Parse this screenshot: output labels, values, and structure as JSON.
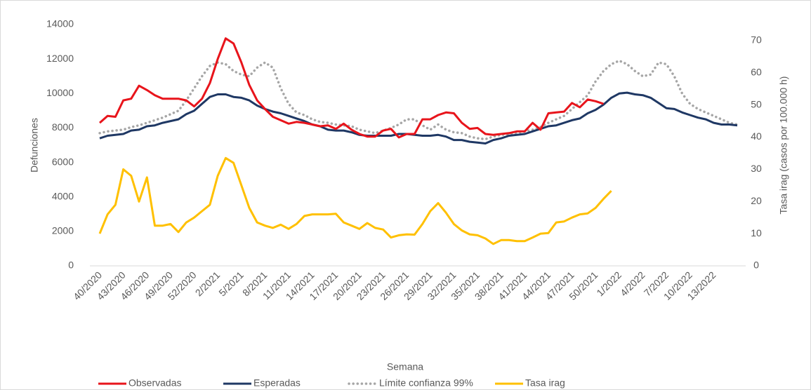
{
  "chart_data": {
    "type": "line",
    "x_label": "Semana",
    "y_label": "Defunciones",
    "y2_label": "Tasa irag (casos por 100.000 h)",
    "categories": [
      "40/2020",
      null,
      null,
      "43/2020",
      null,
      null,
      "46/2020",
      null,
      null,
      "49/2020",
      null,
      null,
      "52/2020",
      null,
      null,
      "2/2021",
      null,
      null,
      "5/2021",
      null,
      null,
      "8/2021",
      null,
      null,
      "11/2021",
      null,
      null,
      "14/2021",
      null,
      null,
      "17/2021",
      null,
      null,
      "20/2021",
      null,
      null,
      "23/2021",
      null,
      null,
      "26/2021",
      null,
      null,
      "29/2021",
      null,
      null,
      "32/2021",
      null,
      null,
      "35/2021",
      null,
      null,
      "38/2021",
      null,
      null,
      "41/2021",
      null,
      null,
      "44/2021",
      null,
      null,
      "47/2021",
      null,
      null,
      "50/2021",
      null,
      null,
      "1/2022",
      null,
      null,
      "4/2022",
      null,
      null,
      "7/2022",
      null,
      null,
      "10/2022",
      null,
      null,
      "13/2022",
      null,
      null,
      null
    ],
    "ylim": [
      0,
      14000
    ],
    "yticks": [
      0,
      2000,
      4000,
      6000,
      8000,
      10000,
      12000,
      14000
    ],
    "y2lim": [
      0,
      75
    ],
    "y2ticks": [
      0,
      10,
      20,
      30,
      40,
      50,
      60,
      70
    ],
    "legend": "bottom",
    "series": [
      {
        "name": "Observadas",
        "color": "#e8141b",
        "style": "solid",
        "values": [
          8300,
          8700,
          8650,
          9600,
          9700,
          10450,
          10200,
          9900,
          9700,
          9700,
          9700,
          9600,
          9250,
          9700,
          10600,
          12000,
          13200,
          12900,
          11800,
          10500,
          9600,
          9100,
          8650,
          8450,
          8250,
          8350,
          8300,
          8200,
          8100,
          8150,
          7950,
          8250,
          7900,
          7650,
          7500,
          7500,
          7850,
          7950,
          7450,
          7650,
          7650,
          8500,
          8500,
          8750,
          8900,
          8850,
          8300,
          7950,
          8000,
          7650,
          7600,
          7650,
          7700,
          7800,
          7800,
          8300,
          7900,
          8850,
          8900,
          8950,
          9450,
          9200,
          9650,
          9550,
          9400,
          null,
          null,
          null,
          null,
          null,
          null,
          null,
          null,
          null,
          null,
          null,
          null,
          null,
          null,
          null,
          null,
          null
        ]
      },
      {
        "name": "Esperadas",
        "color": "#1f3864",
        "style": "solid",
        "values": [
          7400,
          7550,
          7600,
          7650,
          7850,
          7900,
          8100,
          8150,
          8300,
          8400,
          8500,
          8800,
          9000,
          9400,
          9800,
          9950,
          9950,
          9800,
          9750,
          9600,
          9300,
          9100,
          8950,
          8850,
          8700,
          8550,
          8400,
          8200,
          8100,
          7900,
          7850,
          7850,
          7750,
          7600,
          7550,
          7550,
          7550,
          7550,
          7650,
          7650,
          7600,
          7550,
          7550,
          7600,
          7500,
          7300,
          7300,
          7200,
          7150,
          7100,
          7300,
          7400,
          7550,
          7600,
          7650,
          7800,
          7950,
          8100,
          8150,
          8300,
          8450,
          8550,
          8850,
          9050,
          9350,
          9750,
          10000,
          10050,
          9950,
          9900,
          9750,
          9450,
          9150,
          9100,
          8900,
          8750,
          8600,
          8500,
          8300,
          8200,
          8200,
          8150
        ]
      },
      {
        "name": "Límite confianza 99%",
        "color": "#a6a6a6",
        "style": "dotted",
        "values": [
          7700,
          7800,
          7850,
          7900,
          8050,
          8150,
          8300,
          8450,
          8600,
          8800,
          9000,
          9600,
          10300,
          11000,
          11600,
          11800,
          11700,
          11300,
          11100,
          11000,
          11500,
          11800,
          11500,
          10300,
          9400,
          8900,
          8750,
          8500,
          8350,
          8300,
          8200,
          8150,
          8100,
          7900,
          7800,
          7700,
          7850,
          8000,
          8200,
          8500,
          8500,
          8150,
          7900,
          8200,
          7900,
          7750,
          7700,
          7500,
          7400,
          7350,
          7500,
          7600,
          7650,
          7700,
          7800,
          7900,
          8050,
          8300,
          8500,
          8700,
          9100,
          9500,
          9900,
          10700,
          11300,
          11700,
          11900,
          11700,
          11300,
          11000,
          11100,
          11800,
          11700,
          11000,
          10000,
          9400,
          9100,
          8900,
          8700,
          8500,
          8300,
          8200
        ]
      },
      {
        "name": "Tasa irag",
        "color": "#ffc000",
        "style": "solid",
        "axis": "y2",
        "values": [
          10,
          16,
          19,
          30,
          28,
          20,
          27.5,
          12.5,
          12.5,
          13,
          10.5,
          13.5,
          15,
          17,
          19,
          28,
          33.5,
          32,
          25,
          18,
          13.5,
          12.5,
          11.8,
          12.8,
          11.5,
          13,
          15.5,
          16,
          16,
          16,
          16.2,
          13.5,
          12.5,
          11.5,
          13.3,
          11.8,
          11.3,
          8.8,
          9.5,
          9.8,
          9.7,
          13,
          17,
          19.5,
          16.5,
          13,
          11,
          9.8,
          9.5,
          8.5,
          6.8,
          8,
          8,
          7.7,
          7.7,
          8.8,
          10,
          10.2,
          13.5,
          13.8,
          15,
          16,
          16.3,
          18,
          20.8,
          23.3,
          null,
          null,
          null,
          null,
          null,
          null,
          null,
          null,
          null,
          null,
          null,
          null,
          null,
          null,
          null,
          null
        ]
      }
    ]
  }
}
